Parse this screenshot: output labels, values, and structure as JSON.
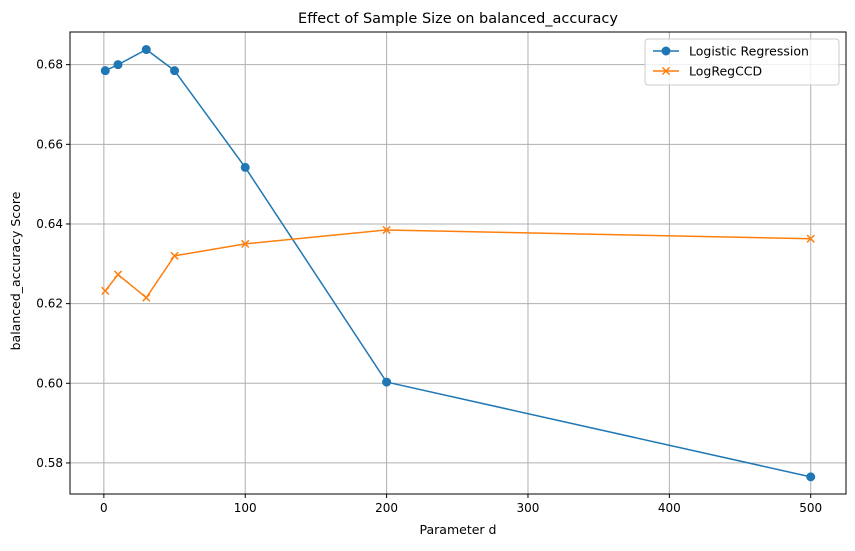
{
  "chart_data": {
    "type": "line",
    "title": "Effect of Sample Size on balanced_accuracy",
    "xlabel": "Parameter d",
    "ylabel": "balanced_accuracy Score",
    "xlim": [
      -23.95,
      524.95
    ],
    "ylim": [
      0.5722,
      0.6882
    ],
    "x_ticks": [
      0,
      100,
      200,
      300,
      400,
      500
    ],
    "y_ticks": [
      0.58,
      0.6,
      0.62,
      0.64,
      0.66,
      0.68
    ],
    "x_tick_labels": [
      "0",
      "100",
      "200",
      "300",
      "400",
      "500"
    ],
    "y_tick_labels": [
      "0.58",
      "0.60",
      "0.62",
      "0.64",
      "0.66",
      "0.68"
    ],
    "grid": true,
    "legend_position": "top-right",
    "x": [
      1,
      10,
      30,
      50,
      100,
      200,
      500
    ],
    "series": [
      {
        "name": "Logistic Regression",
        "color": "#1f77b4",
        "marker": "circle",
        "values": [
          0.6785,
          0.68,
          0.6838,
          0.6785,
          0.6542,
          0.6003,
          0.5765
        ]
      },
      {
        "name": "LogRegCCD",
        "color": "#ff7f0e",
        "marker": "x",
        "values": [
          0.6232,
          0.6273,
          0.6215,
          0.632,
          0.635,
          0.6385,
          0.6363
        ]
      }
    ]
  }
}
